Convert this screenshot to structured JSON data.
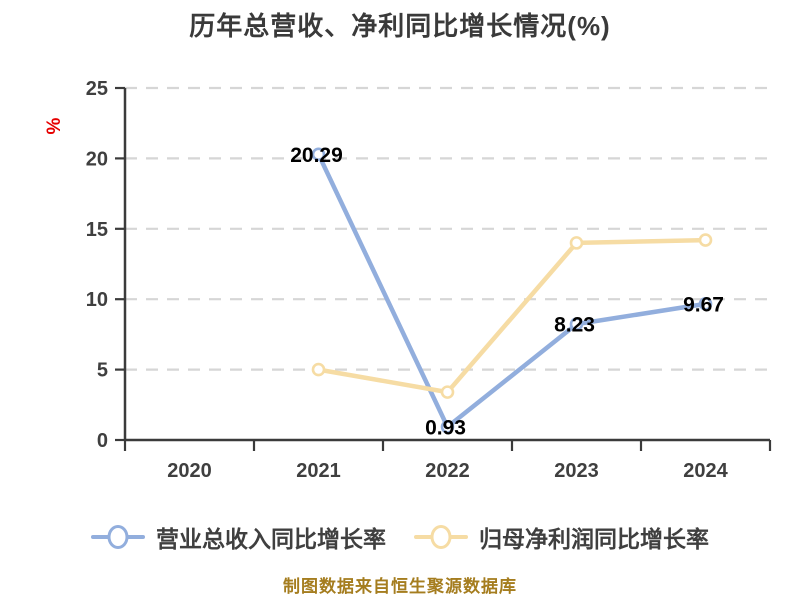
{
  "title": "历年总营收、净利同比增长情况(%)",
  "y_axis_unit": "%",
  "source_note": "制图数据来自恒生聚源数据库",
  "legend": [
    {
      "label": "营业总收入同比增长率",
      "color": "#92aedd"
    },
    {
      "label": "归母净利润同比增长率",
      "color": "#f6dca4"
    }
  ],
  "colors": {
    "revenue_series": "#92aedd",
    "net_profit_series": "#f6dca4",
    "grid": "#d6d6d6",
    "axis": "#3b3b3b",
    "tick_text": "#3f3f3f",
    "point_label": "#000000",
    "title_text": "#3a3a3a",
    "unit_label": "#e60000",
    "source_note": "#a57d1f",
    "marker_fill": "#ffffff"
  },
  "chart_data": {
    "type": "line",
    "title": "历年总营收、净利同比增长情况(%)",
    "categories": [
      "2020",
      "2021",
      "2022",
      "2023",
      "2024"
    ],
    "series": [
      {
        "name": "营业总收入同比增长率",
        "color": "#92aedd",
        "x": [
          "2021",
          "2022",
          "2023",
          "2024"
        ],
        "values": [
          20.29,
          0.93,
          8.23,
          9.67
        ],
        "point_labels": [
          "20.29",
          "0.93",
          "8.23",
          "9.67"
        ]
      },
      {
        "name": "归母净利润同比增长率",
        "color": "#f6dca4",
        "x": [
          "2021",
          "2022",
          "2023",
          "2024"
        ],
        "values": [
          5.0,
          3.4,
          14.0,
          14.2
        ],
        "point_labels": [
          "",
          "",
          "",
          ""
        ]
      }
    ],
    "ylim": [
      0,
      25
    ],
    "y_ticks": [
      0,
      5,
      10,
      15,
      20,
      25
    ],
    "ylabel": "%",
    "grid": "horizontal-dashed",
    "legend_position": "bottom"
  }
}
